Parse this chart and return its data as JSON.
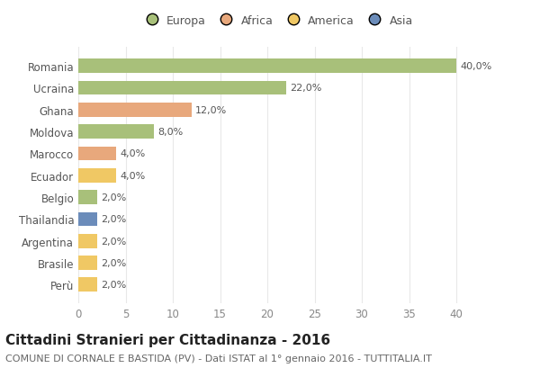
{
  "countries": [
    "Romania",
    "Ucraina",
    "Ghana",
    "Moldova",
    "Marocco",
    "Ecuador",
    "Belgio",
    "Thailandia",
    "Argentina",
    "Brasile",
    "Perù"
  ],
  "values": [
    40.0,
    22.0,
    12.0,
    8.0,
    4.0,
    4.0,
    2.0,
    2.0,
    2.0,
    2.0,
    2.0
  ],
  "colors": [
    "#a8c07a",
    "#a8c07a",
    "#e8a87c",
    "#a8c07a",
    "#e8a87c",
    "#f0c864",
    "#a8c07a",
    "#6b8cba",
    "#f0c864",
    "#f0c864",
    "#f0c864"
  ],
  "labels": [
    "40,0%",
    "22,0%",
    "12,0%",
    "8,0%",
    "4,0%",
    "4,0%",
    "2,0%",
    "2,0%",
    "2,0%",
    "2,0%",
    "2,0%"
  ],
  "legend": {
    "Europa": "#a8c07a",
    "Africa": "#e8a87c",
    "America": "#f0c864",
    "Asia": "#6b8cba"
  },
  "title": "Cittadini Stranieri per Cittadinanza - 2016",
  "subtitle": "COMUNE DI CORNALE E BASTIDA (PV) - Dati ISTAT al 1° gennaio 2016 - TUTTITALIA.IT",
  "xlim": [
    0,
    42
  ],
  "xticks": [
    0,
    5,
    10,
    15,
    20,
    25,
    30,
    35,
    40
  ],
  "bg_color": "#ffffff",
  "grid_color": "#e8e8e8",
  "title_fontsize": 11,
  "subtitle_fontsize": 8,
  "label_fontsize": 8,
  "tick_fontsize": 8.5,
  "legend_fontsize": 9,
  "bar_height": 0.65
}
